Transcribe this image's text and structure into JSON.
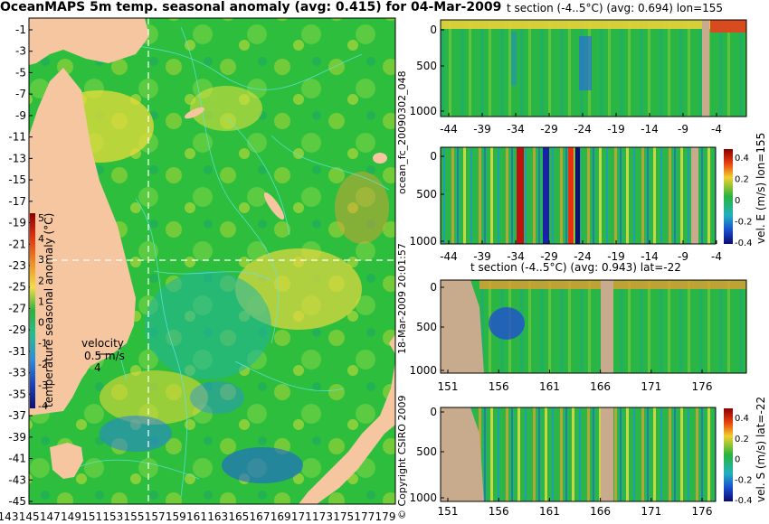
{
  "chart_data": [
    {
      "type": "heatmap",
      "title": "OceanMAPS 5m temp. seasonal anomaly (avg: 0.415) for 04-Mar-2009",
      "x_ticks": [
        "143",
        "145",
        "147",
        "149",
        "151",
        "153",
        "155",
        "157",
        "159",
        "161",
        "163",
        "165",
        "167",
        "169",
        "171",
        "173",
        "175",
        "177",
        "179"
      ],
      "y_ticks": [
        "-1",
        "-3",
        "-5",
        "-7",
        "-9",
        "-11",
        "-13",
        "-15",
        "-17",
        "-19",
        "-21",
        "-23",
        "-25",
        "-27",
        "-29",
        "-31",
        "-33",
        "-35",
        "-37",
        "-39",
        "-41",
        "-43",
        "-45"
      ],
      "xlim": [
        143,
        180
      ],
      "ylim": [
        -45,
        0
      ],
      "colorbar": {
        "label": "temperature seasonal anomaly (°C)",
        "ticks": [
          "5",
          "4",
          "3",
          "2",
          "1",
          "0",
          "-1",
          "-2",
          "-3",
          "-4"
        ],
        "range": [
          -4,
          5
        ]
      },
      "velocity_key": {
        "title": "velocity",
        "line1": "0.5 m/s",
        "line2": "4"
      },
      "section_lines": {
        "lon": 155,
        "lat": -22
      }
    },
    {
      "type": "heatmap",
      "title": "t section (-4..5°C) (avg: 0.694) lon=155",
      "x_ticks": [
        "-44",
        "-39",
        "-34",
        "-29",
        "-24",
        "-19",
        "-14",
        "-9",
        "-4"
      ],
      "y_ticks": [
        "0",
        "500",
        "1000"
      ],
      "xlim": [
        -45,
        0
      ],
      "ylim": [
        1050,
        0
      ]
    },
    {
      "type": "heatmap",
      "title": "",
      "x_ticks": [
        "-44",
        "-39",
        "-34",
        "-29",
        "-24",
        "-19",
        "-14",
        "-9",
        "-4"
      ],
      "y_ticks": [
        "0",
        "500",
        "1000"
      ],
      "xlim": [
        -45,
        0
      ],
      "ylim": [
        1050,
        0
      ],
      "colorbar": {
        "label": "vel. E (m/s) lon=155",
        "ticks": [
          "0.4",
          "0.2",
          "0",
          "-0.2",
          "-0.4"
        ],
        "range": [
          -0.4,
          0.4
        ]
      }
    },
    {
      "type": "heatmap",
      "title": "t section (-4..5°C) (avg: 0.943) lat=-22",
      "x_ticks": [
        "151",
        "156",
        "161",
        "166",
        "171",
        "176"
      ],
      "y_ticks": [
        "0",
        "500",
        "1000"
      ],
      "xlim": [
        150,
        180
      ],
      "ylim": [
        1050,
        0
      ]
    },
    {
      "type": "heatmap",
      "title": "",
      "x_ticks": [
        "151",
        "156",
        "161",
        "166",
        "171",
        "176"
      ],
      "y_ticks": [
        "0",
        "500",
        "1000"
      ],
      "xlim": [
        150,
        180
      ],
      "ylim": [
        1050,
        0
      ],
      "colorbar": {
        "label": "vel. S (m/s) lat=-22",
        "ticks": [
          "0.4",
          "0.2",
          "0",
          "-0.2",
          "-0.4"
        ],
        "range": [
          -0.4,
          0.4
        ]
      }
    }
  ],
  "side_text": {
    "run_id": "ocean_fc_20090302_048",
    "timestamp": "18-Mar-2009 20:01:57",
    "copyright": "© Copyright CSIRO 2009"
  },
  "colors": {
    "land": "#f5c6a0",
    "section_land": "#c8aa8c",
    "contour": "#5ee6e6",
    "green": "#22b43c",
    "yellow": "#f0e040",
    "blue": "#1e78dc"
  }
}
